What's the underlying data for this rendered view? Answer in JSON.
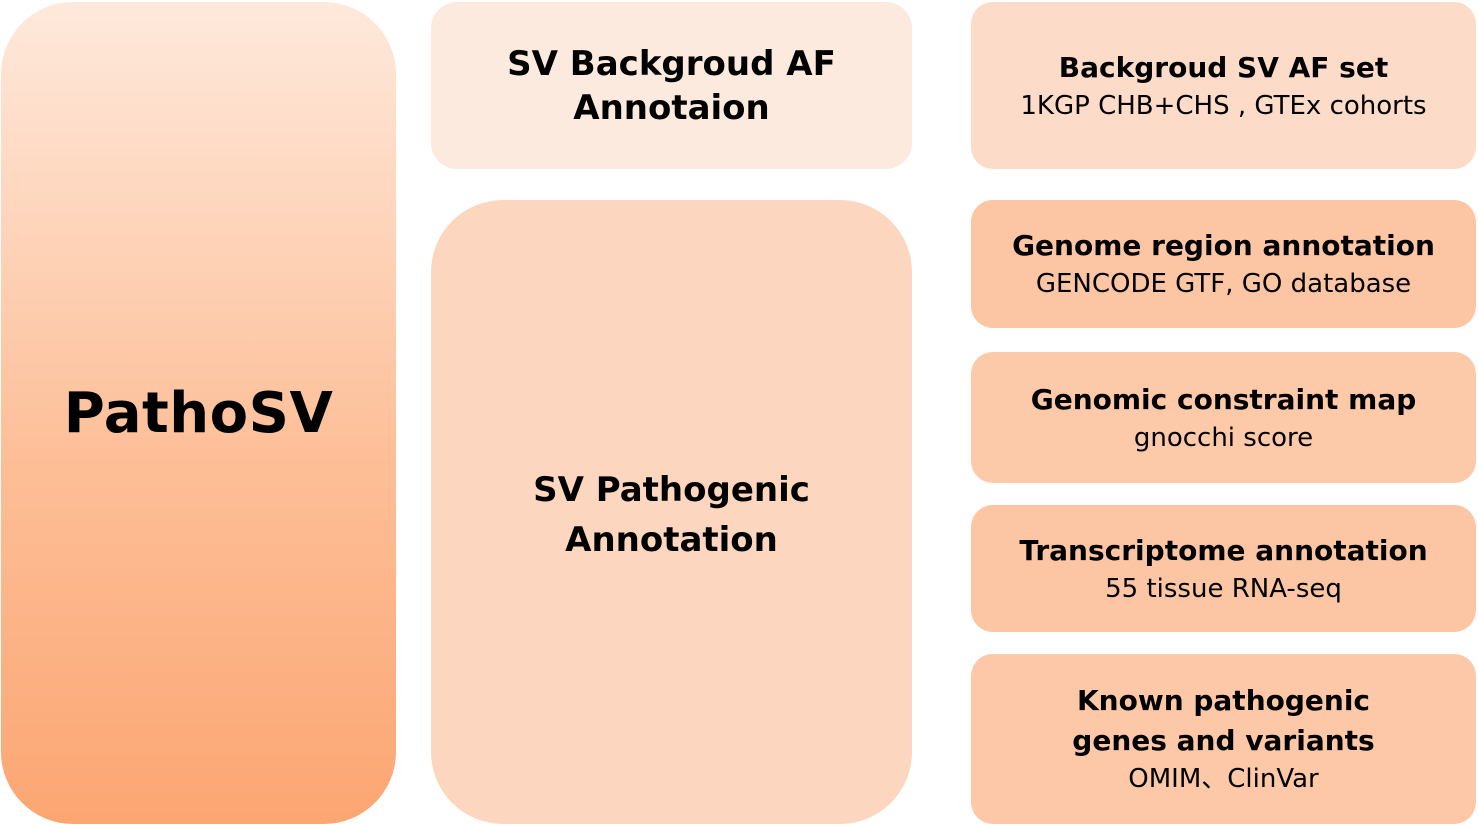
{
  "diagram": {
    "root": {
      "title": "PathoSV"
    },
    "modules": [
      {
        "title_line1": "SV Backgroud AF",
        "title_line2": "Annotaion"
      },
      {
        "title_line1": "SV Pathogenic",
        "title_line2": "Annotation"
      }
    ],
    "resources": [
      {
        "title": "Backgroud SV AF set",
        "subtitle": "1KGP CHB+CHS , GTEx cohorts"
      },
      {
        "title": "Genome region annotation",
        "subtitle": "GENCODE GTF, GO database"
      },
      {
        "title": "Genomic constraint map",
        "subtitle": "gnocchi score"
      },
      {
        "title": "Transcriptome annotation",
        "subtitle": "55 tissue RNA-seq"
      },
      {
        "title_line1": "Known pathogenic",
        "title_line2": "genes and variants",
        "subtitle": "OMIM、ClinVar"
      }
    ],
    "colors": {
      "root_gradient_top": "#fee9dc",
      "root_gradient_bottom": "#fca672",
      "af_module": "#fdeadf",
      "pathogenic_module": "#fcd6be",
      "af_resource": "#fcdcc8",
      "pathogenic_resources": "#fcc6a5"
    }
  }
}
